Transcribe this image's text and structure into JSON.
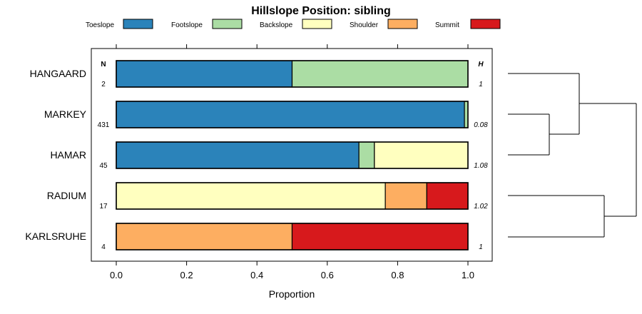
{
  "chart_data": {
    "type": "bar",
    "orientation": "horizontal",
    "stacked": true,
    "title": "Hillslope Position: sibling",
    "xlabel": "Proportion",
    "xlim": [
      0,
      1
    ],
    "x_ticks": [
      "0.0",
      "0.2",
      "0.4",
      "0.6",
      "0.8",
      "1.0"
    ],
    "x_tick_values": [
      0,
      0.2,
      0.4,
      0.6,
      0.8,
      1.0
    ],
    "legend_position": "top",
    "categories": [
      "HANGAARD",
      "MARKEY",
      "HAMAR",
      "RADIUM",
      "KARLSRUHE"
    ],
    "series": [
      {
        "name": "Toeslope",
        "color": "#2b83ba",
        "values": [
          0.5,
          0.99,
          0.69,
          0.0,
          0.0
        ]
      },
      {
        "name": "Footslope",
        "color": "#abdda4",
        "values": [
          0.5,
          0.01,
          0.044,
          0.0,
          0.0
        ]
      },
      {
        "name": "Backslope",
        "color": "#ffffbf",
        "values": [
          0.0,
          0.0,
          0.266,
          0.765,
          0.0
        ]
      },
      {
        "name": "Shoulder",
        "color": "#fdae61",
        "values": [
          0.0,
          0.0,
          0.0,
          0.118,
          0.5
        ]
      },
      {
        "name": "Summit",
        "color": "#d7191c",
        "values": [
          0.0,
          0.0,
          0.0,
          0.117,
          0.5
        ]
      }
    ],
    "n_header": "N",
    "n_values": [
      "2",
      "431",
      "45",
      "17",
      "4"
    ],
    "h_header": "H",
    "h_values": [
      "1",
      "0.08",
      "1.08",
      "1.02",
      "1"
    ],
    "dendrogram": "groups HANGAARD, MARKEY, HAMAR and RADIUM, KARLSRUHE"
  }
}
